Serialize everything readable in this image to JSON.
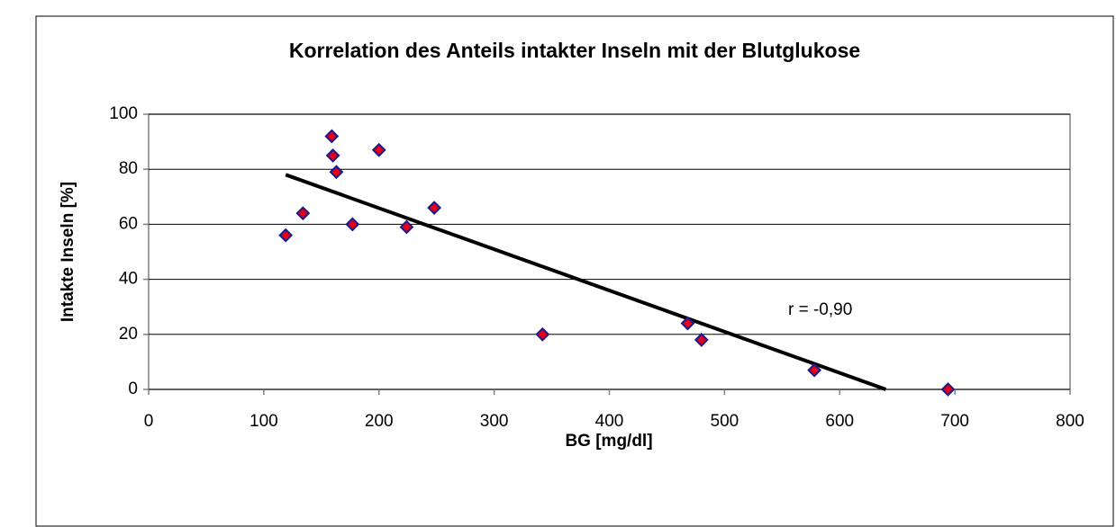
{
  "chart_data": {
    "type": "scatter",
    "title": "Korrelation des Anteils intakter Inseln mit der Blutglukose",
    "x_label": "BG [mg/dl]",
    "y_label": "Intakte Inseln [%]",
    "x": [
      119,
      134,
      159,
      160,
      163,
      177,
      200,
      224,
      248,
      342,
      468,
      480,
      578,
      694
    ],
    "values": [
      56,
      64,
      92,
      85,
      79,
      60,
      87,
      59,
      66,
      20,
      24,
      18,
      7,
      0
    ],
    "marker_color": "#e0001b",
    "marker_edge": "#1a1a8c",
    "trendline": {
      "x": [
        119,
        640
      ],
      "y": [
        78,
        0
      ]
    },
    "annotation": "r = -0,90",
    "xlim": [
      0,
      800
    ],
    "xticks": [
      0,
      100,
      200,
      300,
      400,
      500,
      600,
      700,
      800
    ],
    "ylim": [
      0,
      100
    ],
    "yticks": [
      0,
      20,
      40,
      60,
      80,
      100
    ],
    "grid": true
  }
}
